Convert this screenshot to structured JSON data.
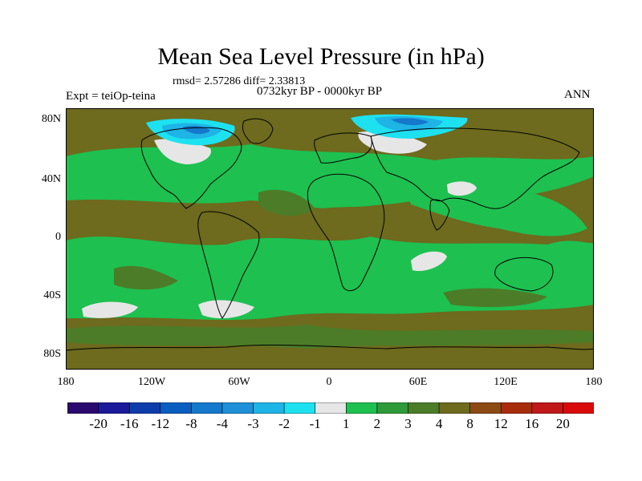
{
  "title": "Mean Sea Level Pressure (in hPa)",
  "stats": "rmsd= 2.57286 diff= 2.33813",
  "period": "0732kyr BP - 0000kyr BP",
  "experiment": "Expt = teiOp-teina",
  "season": "ANN",
  "lat_labels": [
    "80N",
    "40N",
    "0",
    "40S",
    "80S"
  ],
  "lon_labels": [
    "180",
    "120W",
    "60W",
    "0",
    "60E",
    "120E",
    "180"
  ],
  "colorbar": {
    "labels": [
      "-20",
      "-16",
      "-12",
      "-8",
      "-4",
      "-3",
      "-2",
      "-1",
      "1",
      "2",
      "3",
      "4",
      "8",
      "12",
      "16",
      "20"
    ],
    "colors": [
      "#2a0a6e",
      "#1a1a9a",
      "#0c3caa",
      "#0a5ec0",
      "#1478cc",
      "#1e90d8",
      "#1eb4e6",
      "#1ee1f0",
      "#e6e6e6",
      "#1ec050",
      "#2e9a3a",
      "#4c7c28",
      "#6e6a1e",
      "#8c4a14",
      "#a82c0c",
      "#c01818",
      "#d80a0a"
    ]
  },
  "map_colors": {
    "brown": "#6e6a1e",
    "olive": "#4c7c28",
    "darkgreen": "#2e9a3a",
    "green": "#1ec050",
    "white": "#e6e6e6",
    "blue_light": "#1ee1f0",
    "blue_mid": "#1eb4e6",
    "blue_dark": "#1478cc"
  }
}
